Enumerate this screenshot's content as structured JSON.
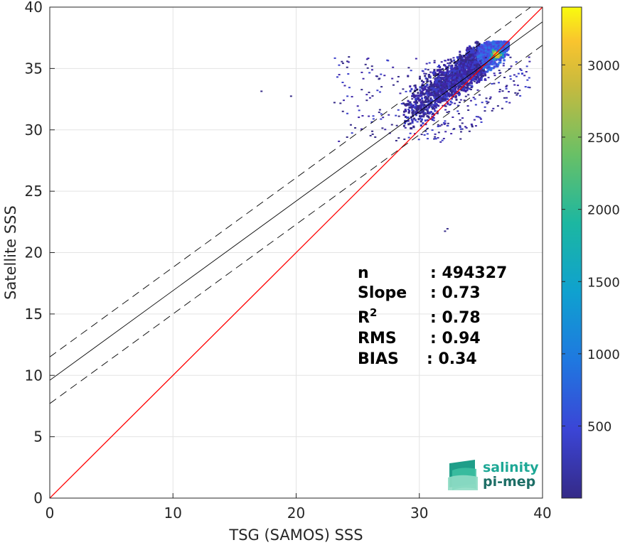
{
  "chart_data": {
    "type": "heatmap",
    "title": "",
    "xlabel": "TSG (SAMOS) SSS",
    "ylabel": "Satellite SSS",
    "xlim": [
      0,
      40
    ],
    "ylim": [
      0,
      40
    ],
    "xticks": [
      0,
      10,
      20,
      30,
      40
    ],
    "yticks": [
      0,
      5,
      10,
      15,
      20,
      25,
      30,
      35,
      40
    ],
    "grid": true,
    "colorbar": {
      "ticks": [
        500,
        1000,
        1500,
        2000,
        2500,
        3000
      ],
      "range": [
        1,
        3400
      ],
      "colormap": "parula"
    },
    "density_cloud": {
      "x_range": [
        22,
        39.5
      ],
      "y_range": [
        21.8,
        37.3
      ],
      "peak_bin": [
        36.2,
        36.2
      ],
      "peak_count": 3400
    },
    "lines": [
      {
        "kind": "identity",
        "color": "#ff0000",
        "slope": 1,
        "intercept": 0
      },
      {
        "kind": "regression",
        "color": "#000000",
        "slope": 0.73,
        "intercept": 9.6
      },
      {
        "kind": "regression_plus_rms",
        "color": "#000000",
        "dash": true,
        "slope": 0.73,
        "intercept": 11.5
      },
      {
        "kind": "regression_minus_rms",
        "color": "#000000",
        "dash": true,
        "slope": 0.73,
        "intercept": 7.7
      }
    ],
    "stats": [
      {
        "label": "n",
        "sep": ": ",
        "value": "494327"
      },
      {
        "label": "Slope",
        "sep": ": ",
        "value": "0.73"
      },
      {
        "label": "R",
        "sup": "2",
        "sep": ": ",
        "value": "0.78"
      },
      {
        "label": "RMS",
        "sep": ": ",
        "value": "0.94"
      },
      {
        "label": "BIAS",
        "sep": ": ",
        "value": "0.34"
      }
    ]
  },
  "logo": {
    "line1": "salinity",
    "line2": "pi-mep",
    "color": "#1ea896"
  }
}
